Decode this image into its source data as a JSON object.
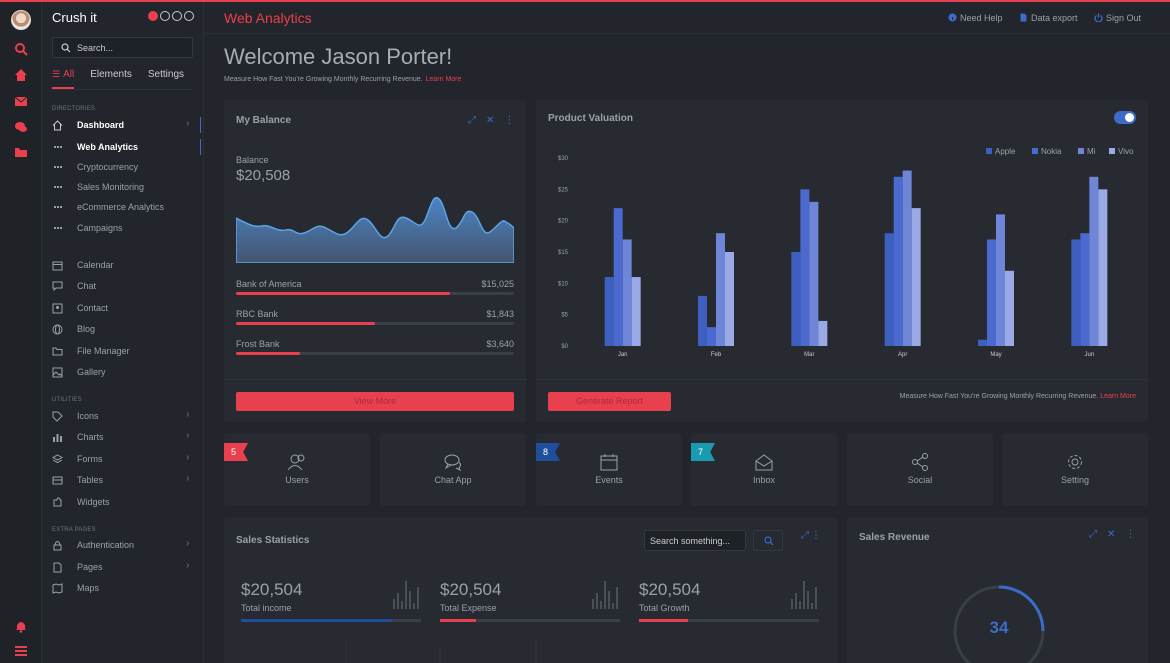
{
  "brand": {
    "name": "Crush it"
  },
  "sidebar": {
    "search_placeholder": "Search...",
    "tabs": [
      {
        "label": "All"
      },
      {
        "label": "Elements"
      },
      {
        "label": "Settings"
      }
    ],
    "sections": {
      "directories": "DIRECTORIES",
      "utilities": "UTILITIES",
      "extra": "EXTRA PAGES"
    },
    "directories": [
      {
        "label": "Dashboard",
        "icon": "home-icon"
      },
      {
        "label": "Web Analytics"
      },
      {
        "label": "Cryptocurrency"
      },
      {
        "label": "Sales Monitoring"
      },
      {
        "label": "eCommerce Analytics"
      },
      {
        "label": "Campaigns"
      }
    ],
    "apps": [
      {
        "label": "Calendar",
        "icon": "calendar-icon"
      },
      {
        "label": "Chat",
        "icon": "chat-icon"
      },
      {
        "label": "Contact",
        "icon": "contact-icon"
      },
      {
        "label": "Blog",
        "icon": "globe-icon"
      },
      {
        "label": "File Manager",
        "icon": "folder-icon"
      },
      {
        "label": "Gallery",
        "icon": "image-icon"
      }
    ],
    "utilities": [
      {
        "label": "Icons",
        "icon": "tag-icon"
      },
      {
        "label": "Charts",
        "icon": "bar-chart-icon"
      },
      {
        "label": "Forms",
        "icon": "layers-icon"
      },
      {
        "label": "Tables",
        "icon": "table-icon"
      },
      {
        "label": "Widgets",
        "icon": "puzzle-icon"
      }
    ],
    "extra": [
      {
        "label": "Authentication",
        "icon": "lock-icon"
      },
      {
        "label": "Pages",
        "icon": "file-icon"
      },
      {
        "label": "Maps",
        "icon": "map-icon"
      }
    ]
  },
  "header": {
    "title": "Web Analytics",
    "links": [
      {
        "label": "Need Help"
      },
      {
        "label": "Data export"
      },
      {
        "label": "Sign Out"
      }
    ]
  },
  "welcome": {
    "title": "Welcome Jason Porter!",
    "subtitle": "Measure How Fast You're Growing Monthly Recurring Revenue.",
    "learn_more": "Learn More"
  },
  "balance": {
    "title": "My Balance",
    "label": "Balance",
    "value": "$20,508",
    "banks": [
      {
        "name": "Bank of America",
        "amount": "$15,025",
        "progress": 0.77
      },
      {
        "name": "RBC Bank",
        "amount": "$1,843",
        "progress": 0.5
      },
      {
        "name": "Frost Bank",
        "amount": "$3,640",
        "progress": 0.23
      }
    ],
    "button": "View More"
  },
  "valuation": {
    "title": "Product Valuation",
    "button": "Generate Report",
    "note": "Measure How Fast You're Growing Monthly Recurring Revenue.",
    "learn_more": "Learn More"
  },
  "chart_data": {
    "type": "bar",
    "categories": [
      "Jan",
      "Feb",
      "Mar",
      "Apr",
      "May",
      "Jun"
    ],
    "series": [
      {
        "name": "Apple",
        "color": "#3f5fc0",
        "values": [
          11,
          8,
          15,
          18,
          1,
          17
        ]
      },
      {
        "name": "Nokia",
        "color": "#4a6ad0",
        "values": [
          22,
          3,
          25,
          27,
          17,
          18
        ]
      },
      {
        "name": "Mi",
        "color": "#6f86d8",
        "values": [
          17,
          18,
          23,
          28,
          21,
          27
        ]
      },
      {
        "name": "Vivo",
        "color": "#9aaae6",
        "values": [
          11,
          15,
          4,
          22,
          12,
          25
        ]
      }
    ],
    "yticks": [
      "$0",
      "$5",
      "$10",
      "$15",
      "$20",
      "$25",
      "$30"
    ],
    "ylim": [
      0,
      30
    ],
    "legend": "top-right",
    "grid": false
  },
  "tiles": [
    {
      "label": "Users",
      "icon": "users-icon",
      "badge": "5",
      "badge_color": "#e8404e"
    },
    {
      "label": "Chat App",
      "icon": "chat-bubbles-icon",
      "badge": null
    },
    {
      "label": "Events",
      "icon": "calendar-icon",
      "badge": "8",
      "badge_color": "#1f4e9c"
    },
    {
      "label": "Inbox",
      "icon": "envelope-open-icon",
      "badge": "7",
      "badge_color": "#1a9bb0"
    },
    {
      "label": "Social",
      "icon": "share-icon",
      "badge": null
    },
    {
      "label": "Setting",
      "icon": "gear-icon",
      "badge": null
    }
  ],
  "sales": {
    "title": "Sales Statistics",
    "search_placeholder": "Search something...",
    "stats": [
      {
        "value": "$20,504",
        "label": "Total income",
        "color": "#3b6cc9",
        "progress": 0.84
      },
      {
        "value": "$20,504",
        "label": "Total Expense",
        "color": "#e8404e",
        "progress": 0.2
      },
      {
        "value": "$20,504",
        "label": "Total Growth",
        "color": "#e8404e",
        "progress": 0.27
      }
    ]
  },
  "revenue": {
    "title": "Sales Revenue",
    "value": "34",
    "progress": 0.34
  },
  "colors": {
    "accent": "#e8404e",
    "blue": "#3b6cc9",
    "bg": "#22252b",
    "card": "#272a31"
  }
}
